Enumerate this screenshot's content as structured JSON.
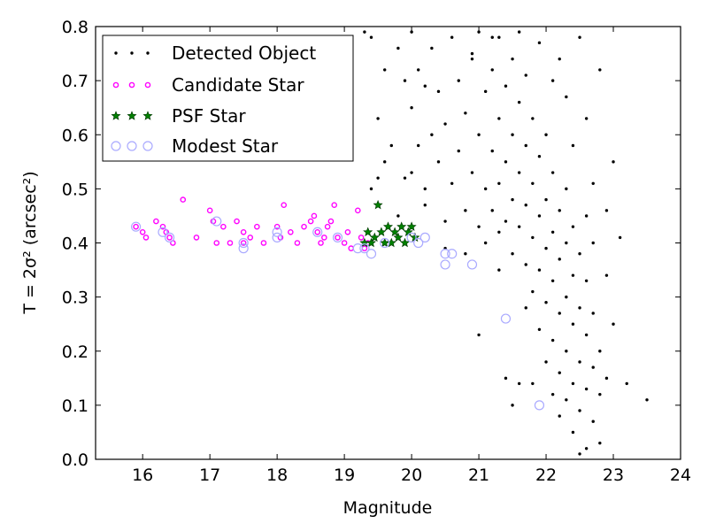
{
  "chart_data": {
    "type": "scatter",
    "xlabel": "Magnitude",
    "ylabel": "T = 2σ² (arcsec²)",
    "xlim": [
      15.3,
      24.0
    ],
    "ylim": [
      0.0,
      0.8
    ],
    "xticks": [
      "16",
      "17",
      "18",
      "19",
      "20",
      "21",
      "22",
      "23",
      "24"
    ],
    "yticks": [
      "0.0",
      "0.1",
      "0.2",
      "0.3",
      "0.4",
      "0.5",
      "0.6",
      "0.7",
      "0.8"
    ],
    "grid": false,
    "legend_position": "top-left",
    "colors": {
      "detected": "#000000",
      "candidate": "#ff00ff",
      "psf": "#008000",
      "modest": "#aaaaff"
    },
    "series": [
      {
        "name": "Detected Object",
        "marker": "dot",
        "points": [
          [
            19.3,
            0.79
          ],
          [
            19.4,
            0.78
          ],
          [
            19.5,
            0.63
          ],
          [
            19.6,
            0.72
          ],
          [
            19.7,
            0.58
          ],
          [
            19.8,
            0.76
          ],
          [
            19.9,
            0.7
          ],
          [
            19.4,
            0.5
          ],
          [
            19.5,
            0.52
          ],
          [
            19.6,
            0.55
          ],
          [
            19.8,
            0.45
          ],
          [
            19.9,
            0.52
          ],
          [
            20.0,
            0.79
          ],
          [
            20.0,
            0.65
          ],
          [
            20.1,
            0.58
          ],
          [
            20.1,
            0.72
          ],
          [
            20.2,
            0.5
          ],
          [
            20.2,
            0.47
          ],
          [
            20.3,
            0.76
          ],
          [
            20.3,
            0.6
          ],
          [
            20.4,
            0.55
          ],
          [
            20.4,
            0.68
          ],
          [
            20.5,
            0.44
          ],
          [
            20.5,
            0.62
          ],
          [
            20.6,
            0.78
          ],
          [
            20.6,
            0.51
          ],
          [
            20.7,
            0.7
          ],
          [
            20.7,
            0.57
          ],
          [
            20.8,
            0.46
          ],
          [
            20.8,
            0.64
          ],
          [
            20.9,
            0.75
          ],
          [
            20.9,
            0.53
          ],
          [
            21.0,
            0.79
          ],
          [
            21.0,
            0.6
          ],
          [
            21.0,
            0.43
          ],
          [
            21.1,
            0.68
          ],
          [
            21.1,
            0.5
          ],
          [
            21.1,
            0.4
          ],
          [
            21.2,
            0.72
          ],
          [
            21.2,
            0.57
          ],
          [
            21.2,
            0.46
          ],
          [
            21.3,
            0.78
          ],
          [
            21.3,
            0.63
          ],
          [
            21.3,
            0.51
          ],
          [
            21.3,
            0.42
          ],
          [
            21.4,
            0.69
          ],
          [
            21.4,
            0.55
          ],
          [
            21.4,
            0.44
          ],
          [
            21.5,
            0.74
          ],
          [
            21.5,
            0.6
          ],
          [
            21.5,
            0.48
          ],
          [
            21.5,
            0.38
          ],
          [
            21.6,
            0.66
          ],
          [
            21.6,
            0.53
          ],
          [
            21.6,
            0.43
          ],
          [
            21.7,
            0.71
          ],
          [
            21.7,
            0.58
          ],
          [
            21.7,
            0.47
          ],
          [
            21.7,
            0.36
          ],
          [
            21.8,
            0.63
          ],
          [
            21.8,
            0.51
          ],
          [
            21.8,
            0.41
          ],
          [
            21.8,
            0.31
          ],
          [
            21.9,
            0.56
          ],
          [
            21.9,
            0.45
          ],
          [
            21.9,
            0.35
          ],
          [
            21.9,
            0.24
          ],
          [
            22.0,
            0.6
          ],
          [
            22.0,
            0.48
          ],
          [
            22.0,
            0.39
          ],
          [
            22.0,
            0.29
          ],
          [
            22.0,
            0.18
          ],
          [
            22.1,
            0.53
          ],
          [
            22.1,
            0.42
          ],
          [
            22.1,
            0.33
          ],
          [
            22.1,
            0.22
          ],
          [
            22.1,
            0.12
          ],
          [
            22.2,
            0.46
          ],
          [
            22.2,
            0.37
          ],
          [
            22.2,
            0.27
          ],
          [
            22.2,
            0.16
          ],
          [
            22.2,
            0.08
          ],
          [
            22.3,
            0.5
          ],
          [
            22.3,
            0.4
          ],
          [
            22.3,
            0.3
          ],
          [
            22.3,
            0.2
          ],
          [
            22.3,
            0.11
          ],
          [
            22.4,
            0.43
          ],
          [
            22.4,
            0.34
          ],
          [
            22.4,
            0.25
          ],
          [
            22.4,
            0.14
          ],
          [
            22.4,
            0.05
          ],
          [
            22.5,
            0.38
          ],
          [
            22.5,
            0.28
          ],
          [
            22.5,
            0.18
          ],
          [
            22.5,
            0.09
          ],
          [
            22.6,
            0.33
          ],
          [
            22.6,
            0.23
          ],
          [
            22.6,
            0.13
          ],
          [
            22.6,
            0.02
          ],
          [
            22.7,
            0.27
          ],
          [
            22.7,
            0.17
          ],
          [
            22.7,
            0.07
          ],
          [
            22.8,
            0.2
          ],
          [
            22.8,
            0.12
          ],
          [
            22.9,
            0.15
          ],
          [
            23.1,
            0.41
          ],
          [
            23.2,
            0.14
          ],
          [
            23.5,
            0.11
          ],
          [
            21.4,
            0.15
          ],
          [
            21.5,
            0.1
          ],
          [
            21.8,
            0.14
          ],
          [
            21.6,
            0.14
          ],
          [
            21.0,
            0.23
          ],
          [
            22.8,
            0.03
          ],
          [
            22.5,
            0.01
          ],
          [
            20.2,
            0.69
          ],
          [
            20.0,
            0.53
          ],
          [
            21.6,
            0.79
          ],
          [
            22.2,
            0.74
          ],
          [
            22.5,
            0.78
          ],
          [
            22.6,
            0.63
          ],
          [
            22.8,
            0.72
          ],
          [
            22.3,
            0.67
          ],
          [
            23.0,
            0.55
          ],
          [
            22.9,
            0.46
          ],
          [
            22.7,
            0.51
          ],
          [
            22.7,
            0.4
          ],
          [
            22.9,
            0.34
          ],
          [
            23.0,
            0.25
          ],
          [
            22.1,
            0.7
          ],
          [
            21.9,
            0.77
          ],
          [
            21.2,
            0.78
          ],
          [
            20.9,
            0.74
          ],
          [
            21.3,
            0.35
          ],
          [
            20.8,
            0.38
          ],
          [
            20.5,
            0.39
          ],
          [
            21.7,
            0.28
          ],
          [
            22.4,
            0.58
          ],
          [
            22.6,
            0.45
          ]
        ]
      },
      {
        "name": "Candidate Star",
        "marker": "ring",
        "points": [
          [
            15.9,
            0.43
          ],
          [
            16.0,
            0.42
          ],
          [
            16.05,
            0.41
          ],
          [
            16.2,
            0.44
          ],
          [
            16.3,
            0.43
          ],
          [
            16.35,
            0.42
          ],
          [
            16.4,
            0.41
          ],
          [
            16.45,
            0.4
          ],
          [
            16.6,
            0.48
          ],
          [
            16.8,
            0.41
          ],
          [
            17.0,
            0.46
          ],
          [
            17.05,
            0.44
          ],
          [
            17.1,
            0.4
          ],
          [
            17.2,
            0.43
          ],
          [
            17.3,
            0.4
          ],
          [
            17.4,
            0.44
          ],
          [
            17.5,
            0.42
          ],
          [
            17.5,
            0.4
          ],
          [
            17.6,
            0.41
          ],
          [
            17.7,
            0.43
          ],
          [
            17.8,
            0.4
          ],
          [
            18.0,
            0.43
          ],
          [
            18.05,
            0.41
          ],
          [
            18.1,
            0.47
          ],
          [
            18.2,
            0.42
          ],
          [
            18.3,
            0.4
          ],
          [
            18.4,
            0.43
          ],
          [
            18.5,
            0.44
          ],
          [
            18.55,
            0.45
          ],
          [
            18.6,
            0.42
          ],
          [
            18.65,
            0.4
          ],
          [
            18.7,
            0.41
          ],
          [
            18.75,
            0.43
          ],
          [
            18.8,
            0.44
          ],
          [
            18.85,
            0.47
          ],
          [
            18.9,
            0.41
          ],
          [
            19.0,
            0.4
          ],
          [
            19.05,
            0.42
          ],
          [
            19.1,
            0.39
          ],
          [
            19.2,
            0.46
          ],
          [
            19.25,
            0.41
          ],
          [
            19.3,
            0.39
          ],
          [
            19.35,
            0.4
          ]
        ]
      },
      {
        "name": "PSF Star",
        "marker": "star",
        "points": [
          [
            19.3,
            0.4
          ],
          [
            19.35,
            0.42
          ],
          [
            19.4,
            0.4
          ],
          [
            19.45,
            0.41
          ],
          [
            19.5,
            0.47
          ],
          [
            19.55,
            0.42
          ],
          [
            19.6,
            0.4
          ],
          [
            19.65,
            0.43
          ],
          [
            19.7,
            0.4
          ],
          [
            19.75,
            0.42
          ],
          [
            19.8,
            0.41
          ],
          [
            19.85,
            0.43
          ],
          [
            19.9,
            0.4
          ],
          [
            19.95,
            0.42
          ],
          [
            20.0,
            0.43
          ],
          [
            20.05,
            0.41
          ]
        ]
      },
      {
        "name": "Modest Star",
        "marker": "circle",
        "points": [
          [
            15.9,
            0.43
          ],
          [
            16.3,
            0.42
          ],
          [
            16.4,
            0.41
          ],
          [
            17.1,
            0.44
          ],
          [
            17.5,
            0.4
          ],
          [
            17.5,
            0.39
          ],
          [
            18.0,
            0.42
          ],
          [
            18.0,
            0.41
          ],
          [
            18.6,
            0.42
          ],
          [
            18.9,
            0.41
          ],
          [
            19.2,
            0.39
          ],
          [
            19.3,
            0.39
          ],
          [
            19.4,
            0.38
          ],
          [
            19.6,
            0.4
          ],
          [
            20.0,
            0.41
          ],
          [
            20.1,
            0.4
          ],
          [
            20.2,
            0.41
          ],
          [
            20.5,
            0.38
          ],
          [
            20.5,
            0.36
          ],
          [
            20.6,
            0.38
          ],
          [
            20.9,
            0.36
          ],
          [
            21.4,
            0.26
          ],
          [
            21.9,
            0.1
          ]
        ]
      }
    ]
  }
}
